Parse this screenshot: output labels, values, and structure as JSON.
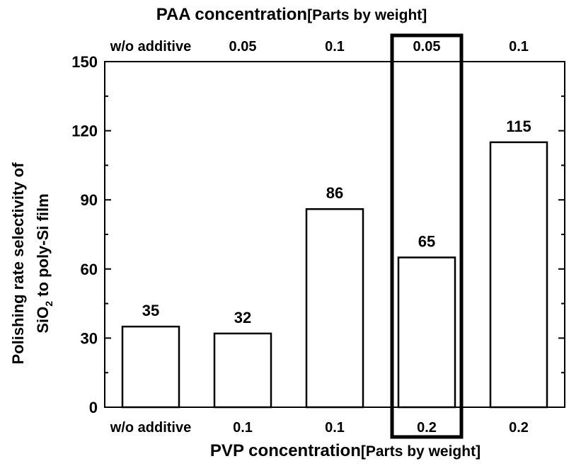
{
  "chart_data": {
    "type": "bar",
    "categories": [
      "w/o additive",
      "0.1",
      "0.1",
      "0.2",
      "0.2"
    ],
    "top_categories": [
      "w/o additive",
      "0.05",
      "0.1",
      "0.05",
      "0.1"
    ],
    "values": [
      35,
      32,
      86,
      65,
      115
    ],
    "data_labels": [
      "35",
      "32",
      "86",
      "65",
      "115"
    ],
    "xlabel": "PVP concentration",
    "xlabel_unit": "[Parts by weight]",
    "top_xlabel": "PAA concentration",
    "top_xlabel_unit": "[Parts by weight]",
    "ylabel_line1": "Polishing rate selectivity of",
    "ylabel_line2_pre": "SiO",
    "ylabel_line2_sub": "2",
    "ylabel_line2_post": " to poly-Si film",
    "ylim": [
      0,
      150
    ],
    "yticks": [
      0,
      30,
      60,
      90,
      120,
      150
    ],
    "ytick_labels": [
      "0",
      "30",
      "60",
      "90",
      "120",
      "150"
    ],
    "highlighted_index": 3,
    "grid": false,
    "bar_color": "#ffffff",
    "stroke_color": "#000000"
  }
}
